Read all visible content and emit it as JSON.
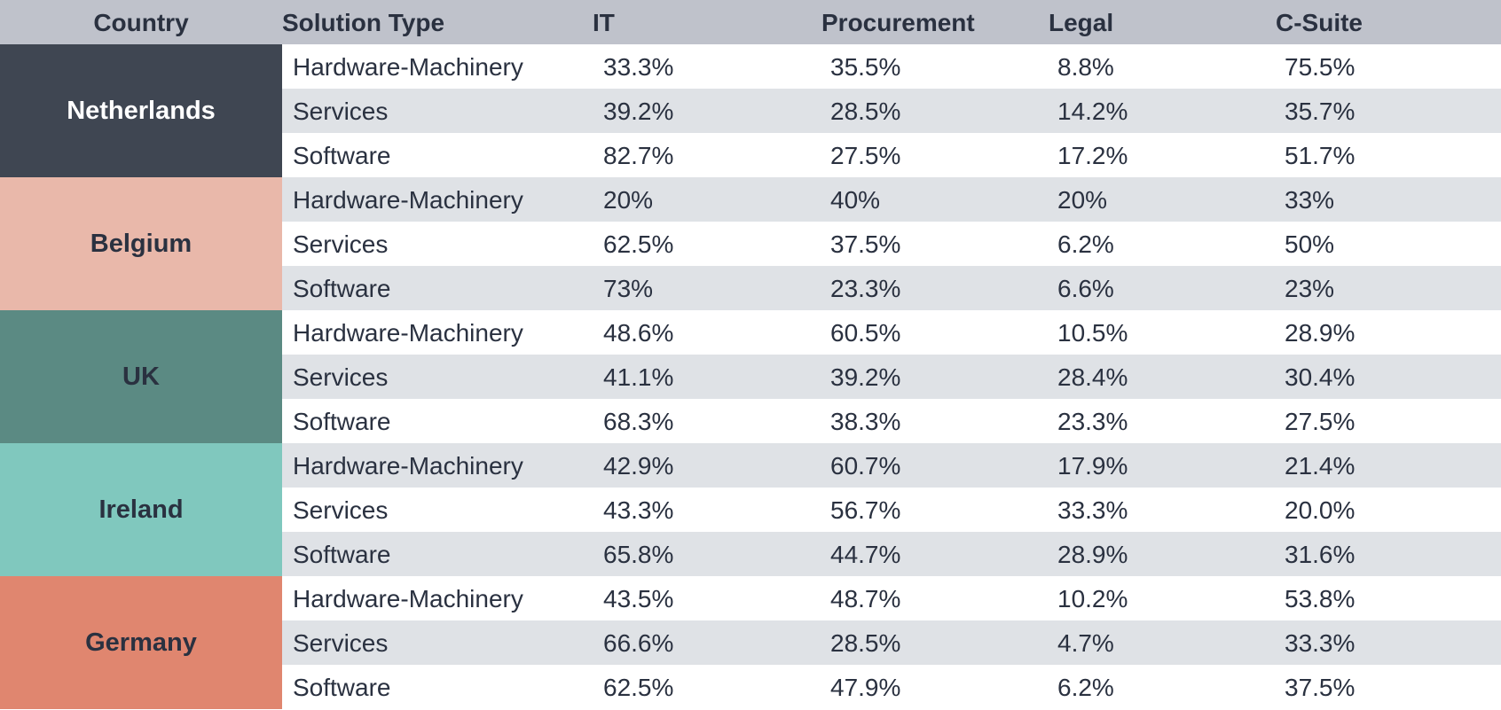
{
  "chart_data": {
    "type": "table",
    "columns": [
      "Country",
      "Solution Type",
      "IT",
      "Procurement",
      "Legal",
      "C-Suite"
    ],
    "groups": [
      {
        "country": "Netherlands",
        "color": "#3f4652",
        "text_color": "#ffffff",
        "rows": [
          {
            "solution": "Hardware-Machinery",
            "values": [
              "33.3%",
              "35.5%",
              "8.8%",
              "75.5%"
            ]
          },
          {
            "solution": "Services",
            "values": [
              "39.2%",
              "28.5%",
              "14.2%",
              "35.7%"
            ]
          },
          {
            "solution": "Software",
            "values": [
              "82.7%",
              "27.5%",
              "17.2%",
              "51.7%"
            ]
          }
        ]
      },
      {
        "country": "Belgium",
        "color": "#e9b8aa",
        "text_color": "#2a3140",
        "rows": [
          {
            "solution": "Hardware-Machinery",
            "values": [
              "20%",
              "40%",
              "20%",
              "33%"
            ]
          },
          {
            "solution": "Services",
            "values": [
              "62.5%",
              "37.5%",
              "6.2%",
              "50%"
            ]
          },
          {
            "solution": "Software",
            "values": [
              "73%",
              "23.3%",
              "6.6%",
              "23%"
            ]
          }
        ]
      },
      {
        "country": "UK",
        "color": "#5b8a83",
        "text_color": "#2a3140",
        "rows": [
          {
            "solution": "Hardware-Machinery",
            "values": [
              "48.6%",
              "60.5%",
              "10.5%",
              "28.9%"
            ]
          },
          {
            "solution": "Services",
            "values": [
              "41.1%",
              "39.2%",
              "28.4%",
              "30.4%"
            ]
          },
          {
            "solution": "Software",
            "values": [
              "68.3%",
              "38.3%",
              "23.3%",
              "27.5%"
            ]
          }
        ]
      },
      {
        "country": "Ireland",
        "color": "#80c8be",
        "text_color": "#2a3140",
        "rows": [
          {
            "solution": "Hardware-Machinery",
            "values": [
              "42.9%",
              "60.7%",
              "17.9%",
              "21.4%"
            ]
          },
          {
            "solution": "Services",
            "values": [
              "43.3%",
              "56.7%",
              "33.3%",
              "20.0%"
            ]
          },
          {
            "solution": "Software",
            "values": [
              "65.8%",
              "44.7%",
              "28.9%",
              "31.6%"
            ]
          }
        ]
      },
      {
        "country": "Germany",
        "color": "#e0866f",
        "text_color": "#2a3140",
        "rows": [
          {
            "solution": "Hardware-Machinery",
            "values": [
              "43.5%",
              "48.7%",
              "10.2%",
              "53.8%"
            ]
          },
          {
            "solution": "Services",
            "values": [
              "66.6%",
              "28.5%",
              "4.7%",
              "33.3%"
            ]
          },
          {
            "solution": "Software",
            "values": [
              "62.5%",
              "47.9%",
              "6.2%",
              "37.5%"
            ]
          }
        ]
      }
    ],
    "colors": {
      "header_bg": "#bfc2cb",
      "band_alt": "#dfe2e6",
      "text": "#2a3140"
    }
  }
}
